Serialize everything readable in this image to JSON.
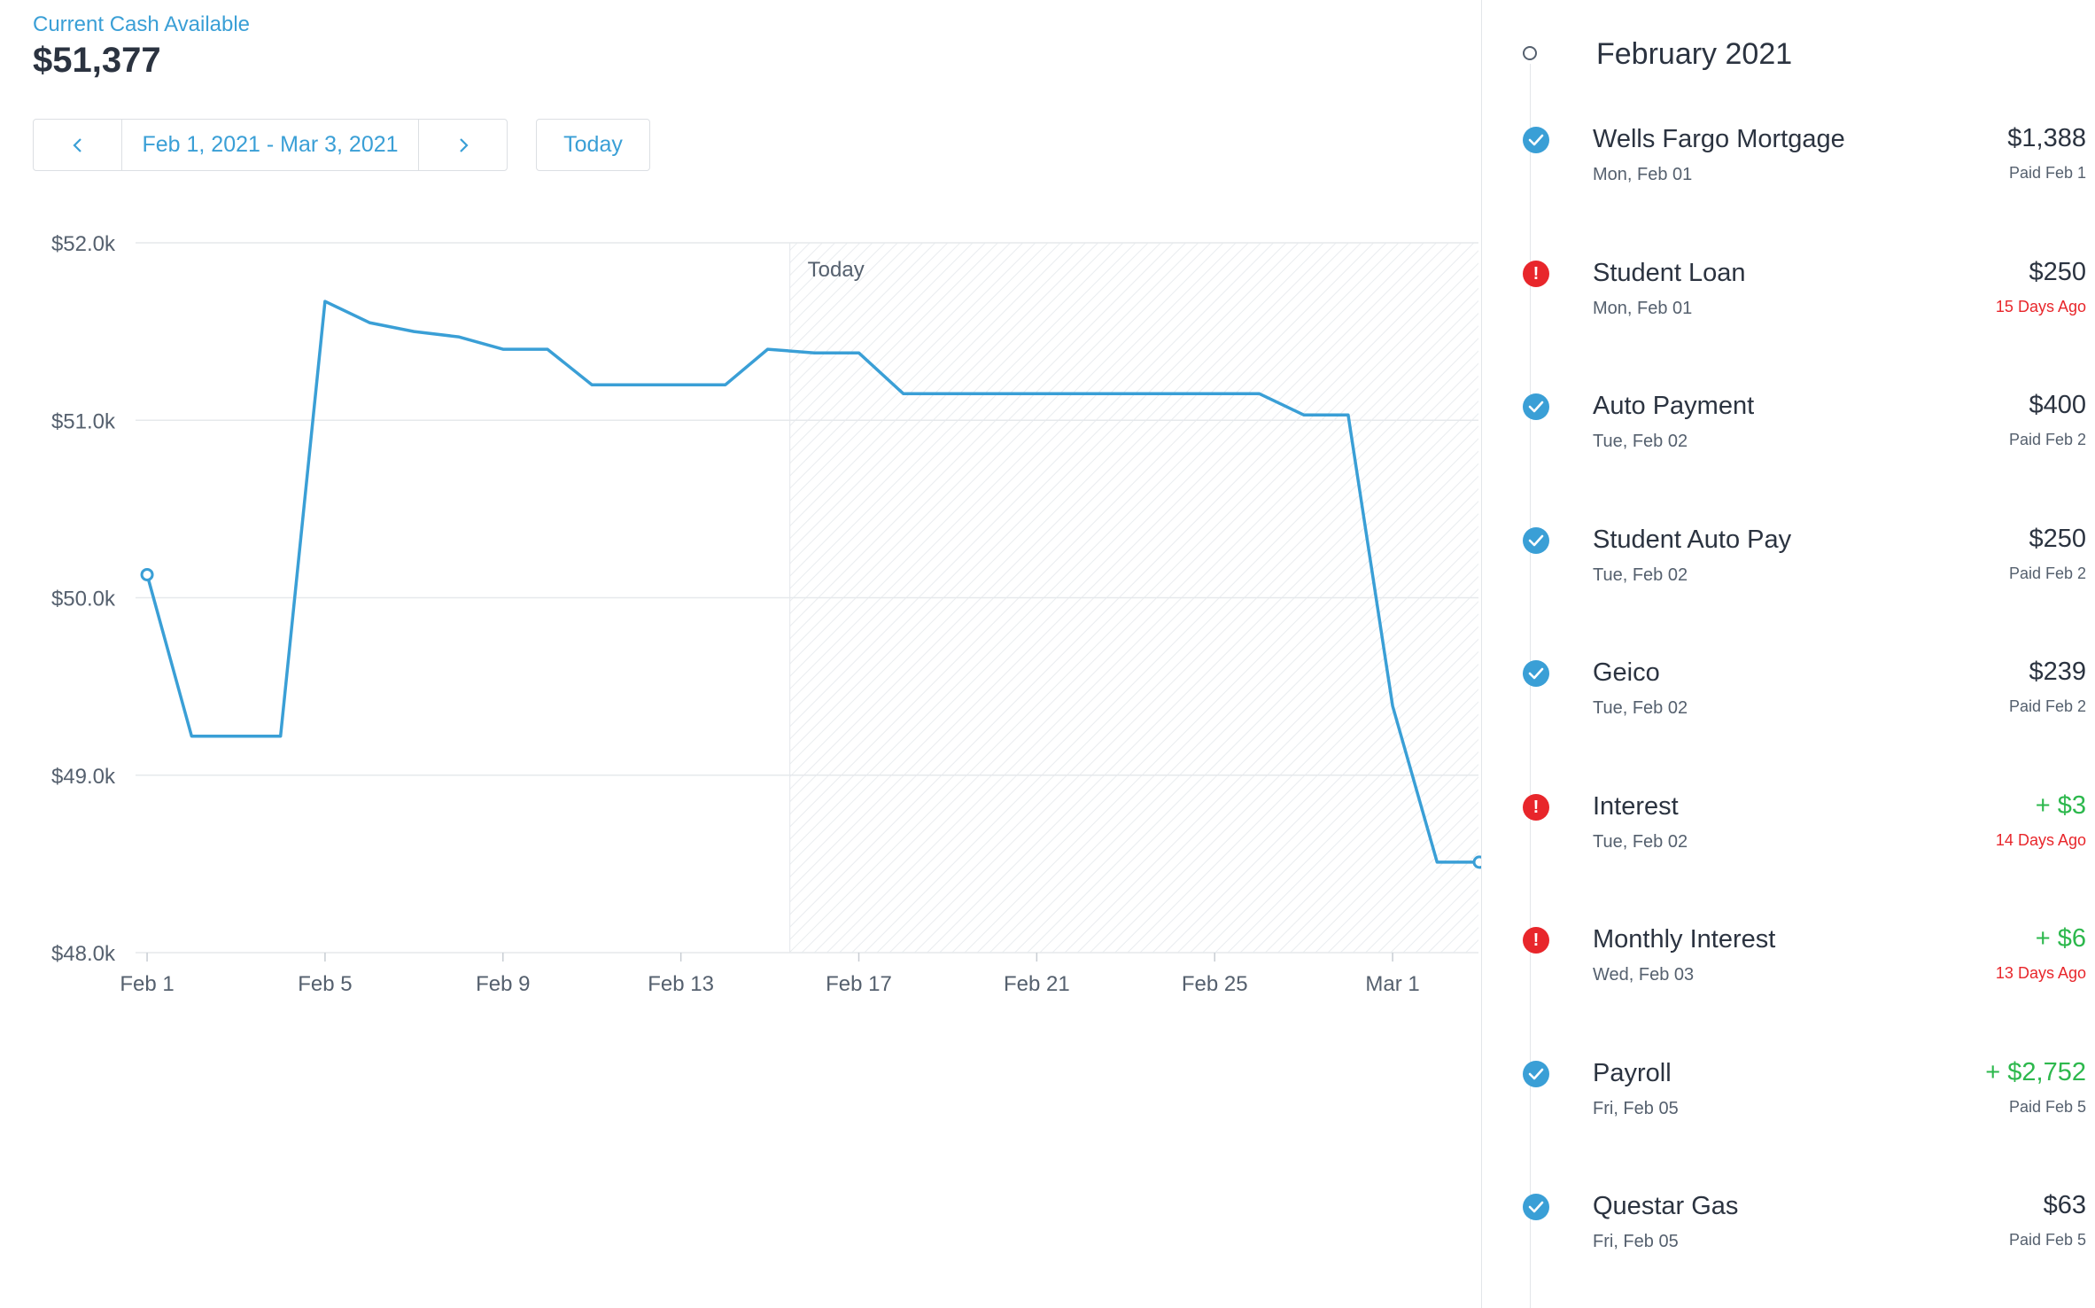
{
  "header": {
    "cash_label": "Current Cash Available",
    "cash_value": "$51,377"
  },
  "date_nav": {
    "prev_icon": "chevron-left-icon",
    "range": "Feb 1, 2021 - Mar 3, 2021",
    "next_icon": "chevron-right-icon",
    "today_label": "Today"
  },
  "colors": {
    "accent": "#3a9fd6",
    "danger": "#e8262b",
    "credit": "#2db84d",
    "text": "#2b3340",
    "muted": "#55606e"
  },
  "chart_data": {
    "type": "line",
    "ylim": [
      48000,
      52000
    ],
    "yticks": [
      48000,
      49000,
      50000,
      51000,
      52000
    ],
    "ytick_labels": [
      "$48.0k",
      "$49.0k",
      "$50.0k",
      "$51.0k",
      "$52.0k"
    ],
    "xticks": [
      1,
      5,
      9,
      13,
      17,
      21,
      25,
      29
    ],
    "xtick_labels": [
      "Feb 1",
      "Feb 5",
      "Feb 9",
      "Feb 13",
      "Feb 17",
      "Feb 21",
      "Feb 25",
      "Mar 1"
    ],
    "xlim": [
      0.74,
      30.93
    ],
    "today_label": "Today",
    "today_x": 15.45,
    "grid": true,
    "series": [
      {
        "x": [
          1,
          2,
          3,
          4,
          5,
          6,
          7,
          8,
          9,
          10,
          11,
          12,
          13,
          14,
          14.95,
          16,
          17,
          18,
          19,
          20,
          21,
          22,
          23,
          24,
          25,
          26,
          27,
          28,
          29,
          30,
          30.95
        ],
        "y": [
          50130,
          49220,
          49220,
          49220,
          51670,
          51550,
          51500,
          51470,
          51400,
          51400,
          51200,
          51200,
          51200,
          51200,
          51400,
          51380,
          51380,
          51150,
          51150,
          51150,
          51150,
          51150,
          51150,
          51150,
          51150,
          51150,
          51030,
          51030,
          49390,
          48510,
          48510
        ]
      }
    ]
  },
  "sidebar": {
    "month": "February 2021",
    "transactions": [
      {
        "name": "Wells Fargo Mortgage",
        "date": "Mon, Feb 01",
        "amount": "$1,388",
        "note": "Paid Feb 1",
        "status": "paid",
        "credit": false
      },
      {
        "name": "Student Loan",
        "date": "Mon, Feb 01",
        "amount": "$250",
        "note": "15 Days Ago",
        "status": "overdue",
        "credit": false
      },
      {
        "name": "Auto Payment",
        "date": "Tue, Feb 02",
        "amount": "$400",
        "note": "Paid Feb 2",
        "status": "paid",
        "credit": false
      },
      {
        "name": "Student Auto Pay",
        "date": "Tue, Feb 02",
        "amount": "$250",
        "note": "Paid Feb 2",
        "status": "paid",
        "credit": false
      },
      {
        "name": "Geico",
        "date": "Tue, Feb 02",
        "amount": "$239",
        "note": "Paid Feb 2",
        "status": "paid",
        "credit": false
      },
      {
        "name": "Interest",
        "date": "Tue, Feb 02",
        "amount": "+ $3",
        "note": "14 Days Ago",
        "status": "overdue",
        "credit": true
      },
      {
        "name": "Monthly Interest",
        "date": "Wed, Feb 03",
        "amount": "+ $6",
        "note": "13 Days Ago",
        "status": "overdue",
        "credit": true
      },
      {
        "name": "Payroll",
        "date": "Fri, Feb 05",
        "amount": "+ $2,752",
        "note": "Paid Feb 5",
        "status": "paid",
        "credit": true
      },
      {
        "name": "Questar Gas",
        "date": "Fri, Feb 05",
        "amount": "$63",
        "note": "Paid Feb 5",
        "status": "paid",
        "credit": false
      }
    ]
  }
}
